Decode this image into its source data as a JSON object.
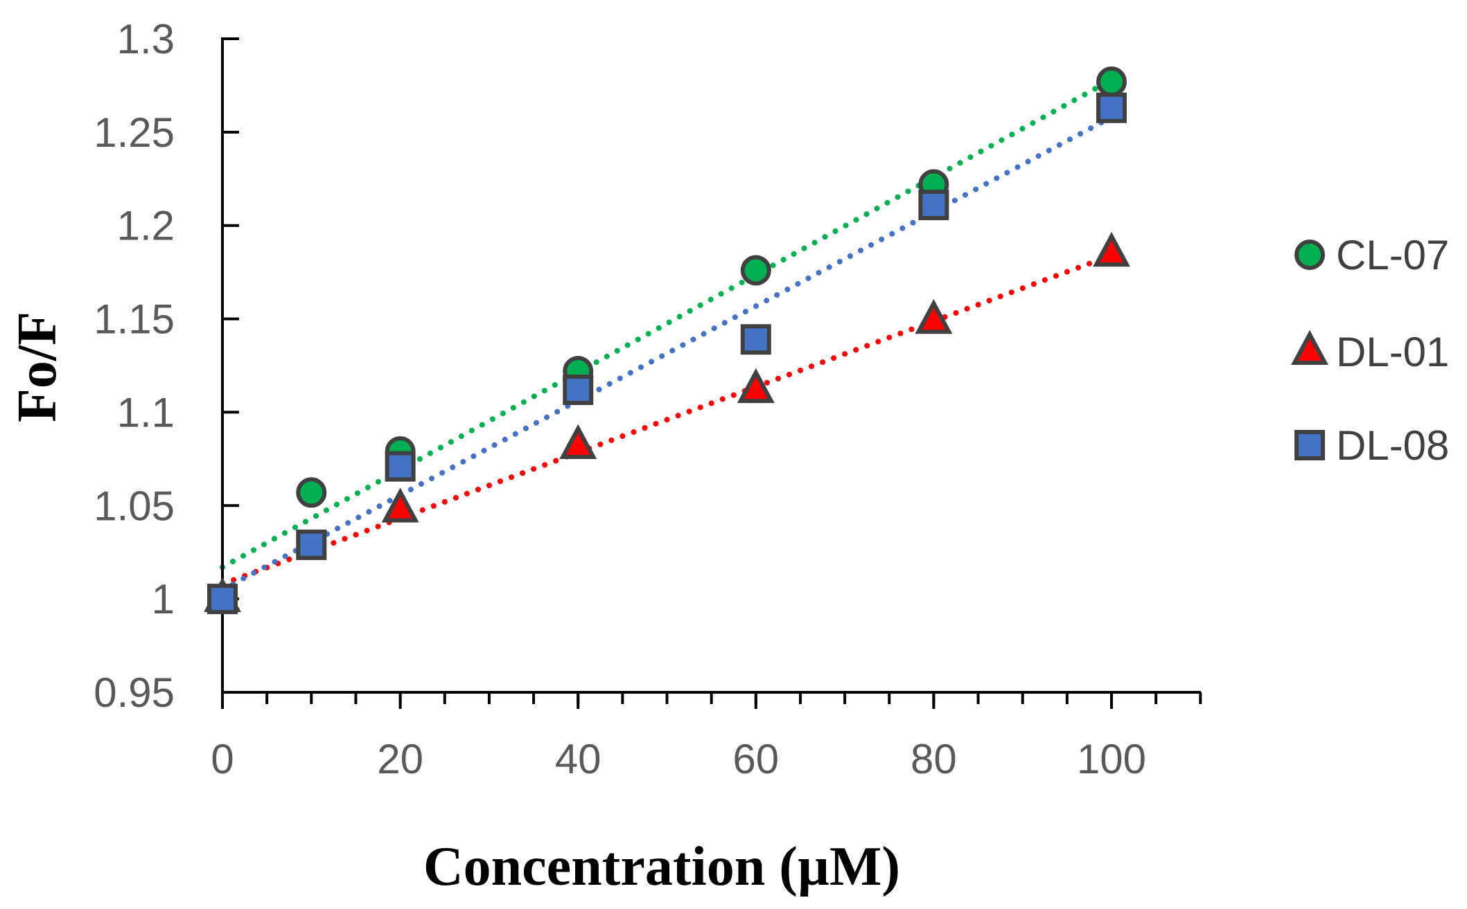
{
  "chart_data": {
    "type": "scatter",
    "title": "",
    "xlabel": "Concentration (µM)",
    "ylabel": "Fo/F",
    "xlim": [
      0,
      110
    ],
    "ylim": [
      0.95,
      1.3
    ],
    "x_ticks": [
      "0",
      "20",
      "40",
      "60",
      "80",
      "100"
    ],
    "x_tick_values": [
      0,
      20,
      40,
      60,
      80,
      100
    ],
    "x_minor_step": 5,
    "y_ticks": [
      "0.95",
      "1",
      "1.05",
      "1.1",
      "1.15",
      "1.2",
      "1.25",
      "1.3"
    ],
    "y_tick_values": [
      0.95,
      1.0,
      1.05,
      1.1,
      1.15,
      1.2,
      1.25,
      1.3
    ],
    "grid": false,
    "legend_position": "right",
    "series": [
      {
        "name": "CL-07",
        "marker": "circle",
        "color": "#00B050",
        "x": [
          0,
          10,
          20,
          40,
          60,
          80,
          100
        ],
        "y": [
          1.0,
          1.057,
          1.079,
          1.122,
          1.176,
          1.222,
          1.277
        ],
        "trendline": {
          "style": "dotted",
          "from": [
            0,
            1.017
          ],
          "to": [
            100,
            1.278
          ]
        }
      },
      {
        "name": "DL-01",
        "marker": "triangle",
        "color": "#FF0000",
        "x": [
          0,
          20,
          40,
          60,
          80,
          100
        ],
        "y": [
          1.0,
          1.048,
          1.082,
          1.112,
          1.149,
          1.185
        ],
        "trendline": {
          "style": "dotted",
          "from": [
            0,
            1.008
          ],
          "to": [
            100,
            1.184
          ]
        }
      },
      {
        "name": "DL-08",
        "marker": "square",
        "color": "#4472C4",
        "x": [
          0,
          10,
          20,
          40,
          60,
          80,
          100
        ],
        "y": [
          1.0,
          1.029,
          1.071,
          1.112,
          1.139,
          1.211,
          1.263
        ],
        "trendline": {
          "style": "dotted",
          "from": [
            0,
            1.005
          ],
          "to": [
            100,
            1.258
          ]
        }
      }
    ]
  }
}
